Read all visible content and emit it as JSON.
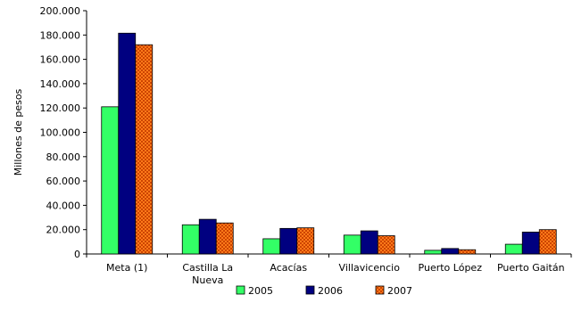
{
  "chart_data": {
    "type": "bar",
    "title": "",
    "xlabel": "",
    "ylabel": "Millones de pesos",
    "ylim": [
      0,
      200000
    ],
    "yticks": [
      0,
      20000,
      40000,
      60000,
      80000,
      100000,
      120000,
      140000,
      160000,
      180000,
      200000
    ],
    "ytick_labels": [
      "0",
      "20.000",
      "40.000",
      "60.000",
      "80.000",
      "100.000",
      "120.000",
      "140.000",
      "160.000",
      "180.000",
      "200.000"
    ],
    "categories": [
      "Meta (1)",
      "Castilla La Nueva",
      "Acacías",
      "Villavicencio",
      "Puerto López",
      "Puerto Gaitán"
    ],
    "category_lines": [
      [
        "Meta (1)"
      ],
      [
        "Castilla La",
        "Nueva"
      ],
      [
        "Acacías"
      ],
      [
        "Villavicencio"
      ],
      [
        "Puerto López"
      ],
      [
        "Puerto Gaitán"
      ]
    ],
    "series": [
      {
        "name": "2005",
        "color": "#33ff66",
        "pattern": "solid",
        "values": [
          121000,
          24000,
          12500,
          15500,
          3000,
          8000
        ]
      },
      {
        "name": "2006",
        "color": "#000080",
        "pattern": "solid",
        "values": [
          181500,
          28500,
          21000,
          19000,
          4500,
          18000
        ]
      },
      {
        "name": "2007",
        "color": "#ff6600",
        "pattern": "checker",
        "values": [
          172000,
          25500,
          21500,
          15000,
          3500,
          20000
        ]
      }
    ],
    "grid": false,
    "legend_position": "bottom"
  }
}
